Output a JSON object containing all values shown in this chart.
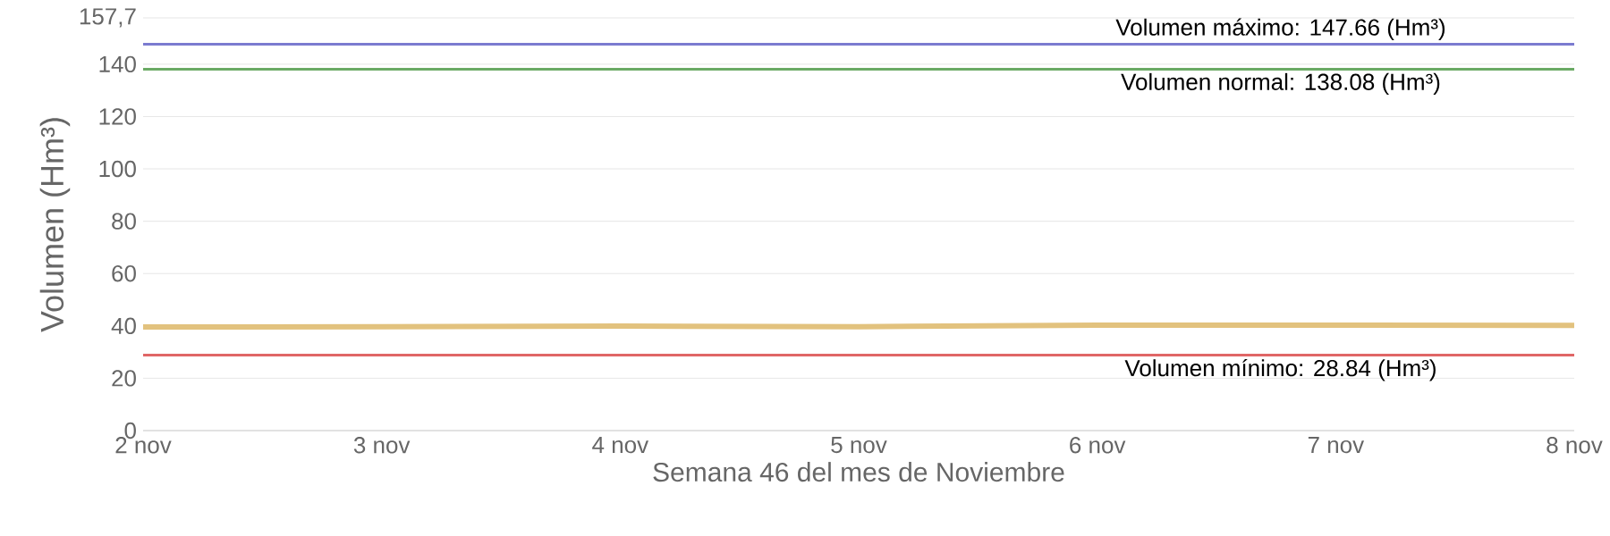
{
  "chart_data": {
    "type": "line",
    "xlabel": "Semana 46 del mes de Noviembre",
    "ylabel": "Volumen (Hm³)",
    "categories": [
      "2 nov",
      "3 nov",
      "4 nov",
      "5 nov",
      "6 nov",
      "7 nov",
      "8 nov"
    ],
    "series": [
      {
        "color": "#e2c27e",
        "values": [
          39.6,
          39.7,
          39.9,
          39.7,
          40.3,
          40.3,
          40.2
        ]
      }
    ],
    "ylim": [
      0,
      157.7
    ],
    "yticks": [
      0,
      20,
      40,
      60,
      80,
      100,
      120,
      140,
      {
        "value": 157.7,
        "label": "157,7"
      }
    ],
    "grid": "y",
    "legend": false,
    "marker": "none",
    "line_style": "solid",
    "ref_lines": [
      {
        "axis": "y",
        "value": 147.66,
        "label": "Volumen máximo: 147.66 (Hm³)",
        "color": "#7b7bd0"
      },
      {
        "axis": "y",
        "value": 138.08,
        "label": "Volumen normal: 138.08 (Hm³)",
        "color": "#6aaa64"
      },
      {
        "axis": "y",
        "value": 28.84,
        "label": "Volumen mínimo: 28.84 (Hm³)",
        "color": "#e06666"
      }
    ]
  }
}
